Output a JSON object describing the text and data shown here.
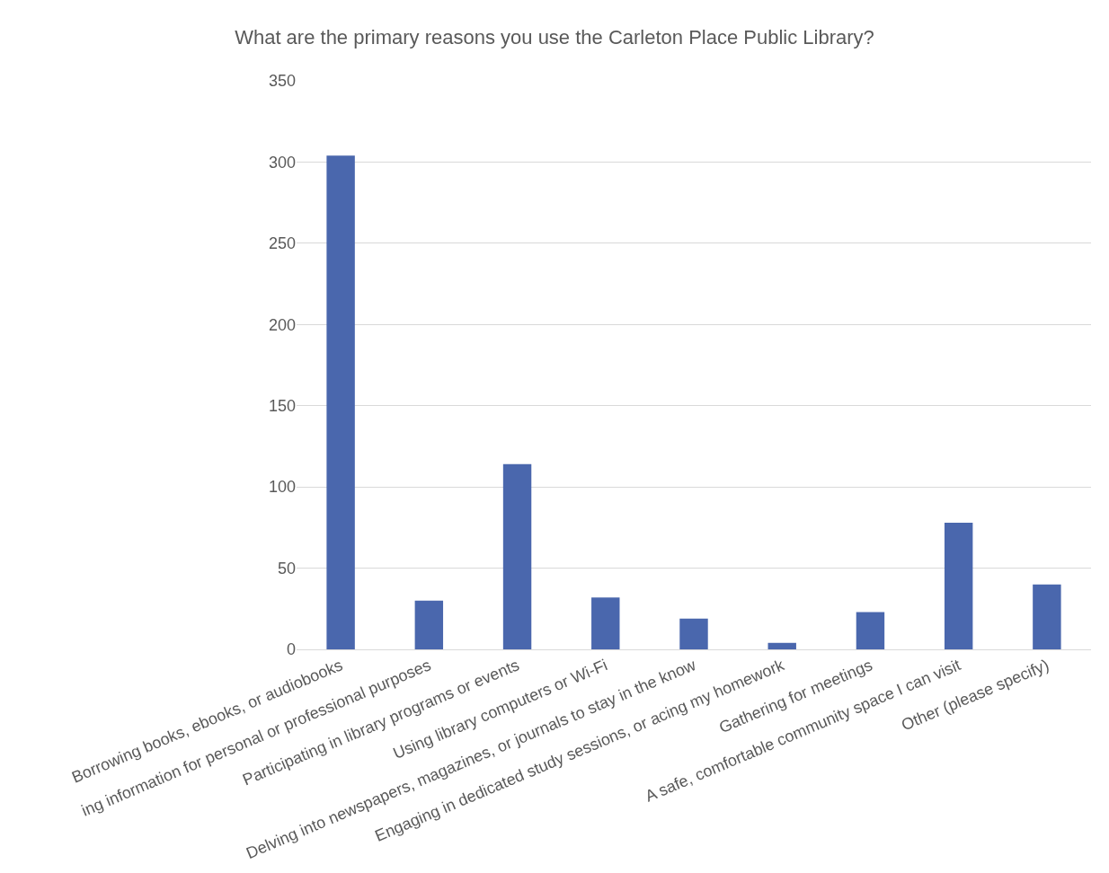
{
  "chart_data": {
    "type": "bar",
    "title": "What are the primary reasons you use the Carleton Place Public Library?",
    "categories": [
      "Borrowing books, ebooks, or audiobooks",
      "ing information for personal or professional purposes",
      "Participating in library programs or events",
      "Using library computers or Wi-Fi",
      "Delving into newspapers, magazines, or journals to stay in the know",
      "Engaging in dedicated study sessions, or acing my homework",
      "Gathering for meetings",
      "A safe, comfortable community space I can visit",
      "Other (please specify)"
    ],
    "values": [
      304,
      30,
      114,
      32,
      19,
      4,
      23,
      78,
      40
    ],
    "color": "#4a67ad",
    "ylim": [
      0,
      350
    ],
    "yticks": [
      0,
      50,
      100,
      150,
      200,
      250,
      300,
      350
    ],
    "grid": "y"
  }
}
